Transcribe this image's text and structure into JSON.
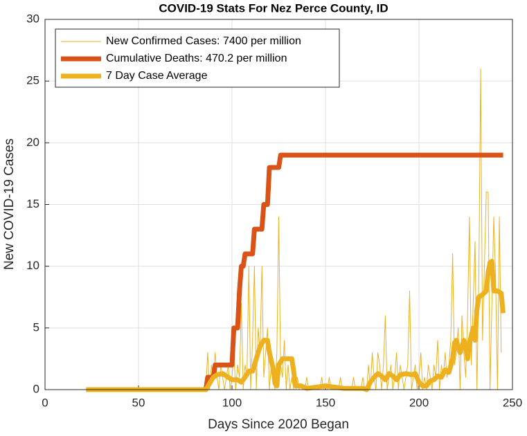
{
  "chart_data": {
    "type": "line",
    "title": "COVID-19 Stats For Nez Perce County, ID",
    "x_label": "Days Since 2020 Began",
    "y_label": "New COVID-19 Cases",
    "xlim": [
      0,
      250
    ],
    "xticks": [
      0,
      50,
      100,
      150,
      200,
      250
    ],
    "ylim": [
      0,
      30
    ],
    "yticks": [
      0,
      5,
      10,
      15,
      20,
      25,
      30
    ],
    "grid": true,
    "legend": "upper left",
    "series": [
      {
        "name": "New Confirmed Cases: 7400 per million",
        "color": "#EDB120",
        "x": [
          22,
          86,
          87,
          88,
          89,
          90,
          91,
          92,
          93,
          94,
          95,
          96,
          97,
          98,
          99,
          100,
          101,
          102,
          103,
          104,
          105,
          106,
          107,
          108,
          109,
          110,
          111,
          112,
          113,
          114,
          115,
          116,
          117,
          118,
          119,
          120,
          121,
          122,
          123,
          124,
          125,
          126,
          127,
          128,
          129,
          130,
          131,
          132,
          133,
          134,
          135,
          136,
          137,
          138,
          139,
          140,
          141,
          142,
          143,
          144,
          145,
          146,
          147,
          148,
          149,
          150,
          151,
          152,
          153,
          154,
          155,
          156,
          157,
          158,
          159,
          160,
          161,
          162,
          163,
          164,
          165,
          166,
          167,
          168,
          169,
          170,
          171,
          172,
          173,
          174,
          175,
          176,
          177,
          178,
          179,
          180,
          181,
          182,
          183,
          184,
          185,
          186,
          187,
          188,
          189,
          190,
          191,
          192,
          193,
          194,
          195,
          196,
          197,
          198,
          199,
          200,
          201,
          202,
          203,
          204,
          205,
          206,
          207,
          208,
          209,
          210,
          211,
          212,
          213,
          214,
          215,
          216,
          217,
          218,
          219,
          220,
          221,
          222,
          223,
          224,
          225,
          226,
          227,
          228,
          229,
          230,
          231,
          232,
          233,
          234,
          235,
          236,
          237,
          238,
          239,
          240,
          241,
          242,
          243,
          244
        ],
        "values": [
          0,
          0,
          3,
          0,
          2,
          1,
          3,
          1,
          0,
          2,
          1,
          0,
          1,
          2,
          0,
          1,
          3,
          0,
          2,
          1,
          7,
          0,
          2,
          1,
          10,
          0,
          4,
          10,
          0,
          5,
          3,
          10,
          1,
          3,
          5,
          0,
          2,
          1,
          0,
          3,
          14,
          2,
          1,
          4,
          0,
          2,
          0,
          1,
          0,
          0,
          1,
          0,
          0,
          0,
          0,
          1,
          0,
          0,
          0,
          0,
          0,
          0,
          0,
          1,
          0,
          0,
          0,
          1,
          0,
          0,
          0,
          0,
          0,
          1,
          0,
          0,
          0,
          0,
          0,
          0,
          1,
          0,
          0,
          0,
          0,
          1,
          0,
          0,
          2,
          0,
          3,
          1,
          0,
          3,
          2,
          0,
          2,
          6,
          0,
          1,
          2,
          0,
          1,
          3,
          0,
          2,
          1,
          0,
          1,
          2,
          8,
          0,
          1,
          2,
          0,
          1,
          3,
          0,
          1,
          0,
          2,
          1,
          0,
          2,
          1,
          4,
          0,
          2,
          1,
          3,
          1,
          2,
          4,
          11,
          2,
          3,
          5,
          0,
          6,
          3,
          1,
          6,
          14,
          2,
          7,
          12,
          0,
          9,
          26,
          4,
          10,
          16,
          16,
          0,
          7,
          14,
          9,
          0,
          14,
          3
        ]
      },
      {
        "name": "Cumulative Deaths: 470.2 per million",
        "color": "#D95319",
        "x": [
          22,
          86,
          87,
          90,
          91,
          100,
          101,
          103,
          104,
          105,
          106,
          107,
          111,
          112,
          116,
          117,
          119,
          120,
          125,
          126,
          245
        ],
        "values": [
          0,
          0,
          1,
          1,
          2,
          2,
          5,
          5,
          8,
          10,
          10,
          11,
          11,
          13,
          13,
          15,
          15,
          18,
          18,
          19,
          19
        ]
      },
      {
        "name": "7 Day Case Average",
        "color": "#EDB120",
        "x": [
          22,
          86,
          88,
          90,
          92,
          95,
          98,
          100,
          103,
          105,
          107,
          109,
          111,
          113,
          115,
          117,
          119,
          120,
          122,
          123,
          124,
          125,
          127,
          130,
          132,
          133,
          134,
          137,
          140,
          145,
          150,
          155,
          160,
          165,
          170,
          172,
          174,
          176,
          178,
          180,
          182,
          184,
          186,
          188,
          190,
          193,
          196,
          198,
          200,
          202,
          204,
          206,
          208,
          210,
          212,
          214,
          216,
          218,
          219,
          220,
          221,
          222,
          224,
          225,
          226,
          227,
          229,
          230,
          231,
          232,
          234,
          236,
          237,
          238,
          239,
          240,
          242,
          244,
          245
        ],
        "values": [
          0,
          0,
          0.5,
          1,
          1.2,
          1.3,
          1,
          0.8,
          0.8,
          0.6,
          1,
          1.5,
          1.5,
          2.5,
          3.5,
          4,
          4,
          3,
          1.7,
          0.5,
          0.3,
          2,
          2.5,
          2.5,
          2.5,
          1.5,
          0.3,
          0.3,
          0.1,
          0.2,
          0.3,
          0.2,
          0.1,
          0.1,
          0.1,
          0,
          0.6,
          1,
          1.3,
          1.1,
          0.8,
          1.3,
          1.1,
          0.8,
          1.2,
          1.3,
          1.2,
          1.3,
          0.6,
          0.3,
          0.3,
          0.7,
          0.8,
          1.1,
          1,
          1.6,
          1.4,
          2.5,
          3.8,
          4,
          3.4,
          3,
          4,
          3.5,
          2.5,
          3.8,
          5,
          4,
          6.5,
          7.5,
          7.7,
          8,
          9.5,
          10.3,
          10.4,
          8,
          8,
          7.8,
          6.2
        ]
      }
    ]
  }
}
